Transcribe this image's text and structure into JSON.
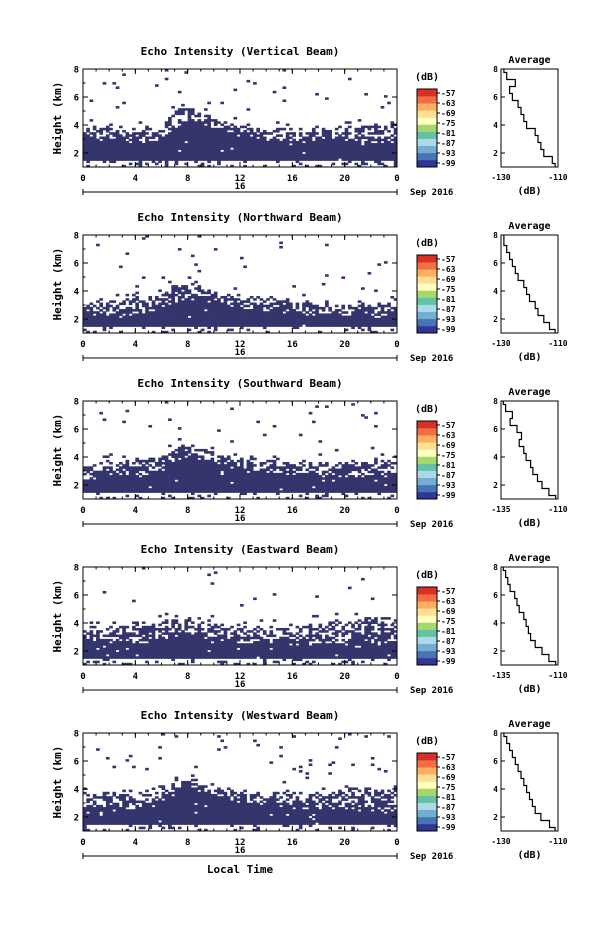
{
  "chart_data": [
    {
      "type": "heatmap",
      "title": "Echo Intensity (Vertical Beam)",
      "ylabel": "Height (km)",
      "xlim": [
        0,
        24
      ],
      "ylim": [
        1,
        8
      ],
      "xticks": [
        "0",
        "4",
        "8",
        "12",
        "16",
        "20",
        "0"
      ],
      "yticks": [
        "2",
        "4",
        "6",
        "8"
      ],
      "date_label": "16",
      "month_label": "Sep 2016",
      "colorbar": {
        "unit": "(dB)",
        "ticks": [
          "-57",
          "-63",
          "-69",
          "-75",
          "-81",
          "-87",
          "-93",
          "-99"
        ]
      },
      "cloud": {
        "base": [
          3.7,
          3.8,
          3.9,
          3.6,
          3.7,
          3.8,
          4.0,
          5.2,
          5.4,
          5.0,
          4.5,
          4.3,
          4.1,
          3.9,
          3.8,
          3.9,
          3.8,
          3.7,
          3.6,
          3.6,
          3.8,
          4.0,
          4.0,
          3.9,
          4.1
        ],
        "dense": [
          2.9,
          2.8,
          3.0,
          2.9,
          2.7,
          2.8,
          3.0,
          3.6,
          4.5,
          4.0,
          3.8,
          3.4,
          3.2,
          3.0,
          2.9,
          2.8,
          2.7,
          2.8,
          3.0,
          2.9,
          2.8,
          2.6,
          2.5,
          2.5,
          2.6
        ]
      },
      "profile": {
        "title": "Average",
        "xlabel": "(dB)",
        "xlim": [
          -130,
          -110
        ],
        "xticks": [
          "-130",
          "-110"
        ],
        "yticks": [
          "2",
          "4",
          "6",
          "8"
        ],
        "h": [
          1,
          1.5,
          2,
          2.5,
          3,
          3.5,
          4,
          4.5,
          5,
          5.5,
          6,
          6.5,
          7,
          7.5,
          8
        ],
        "v": [
          -111,
          -112,
          -115,
          -116,
          -117,
          -118,
          -121,
          -122,
          -123,
          -124,
          -126,
          -127,
          -125,
          -128,
          -129
        ]
      }
    },
    {
      "type": "heatmap",
      "title": "Echo Intensity (Northward Beam)",
      "ylabel": "Height (km)",
      "xlim": [
        0,
        24
      ],
      "ylim": [
        1,
        8
      ],
      "xticks": [
        "0",
        "4",
        "8",
        "12",
        "16",
        "20",
        "0"
      ],
      "yticks": [
        "2",
        "4",
        "6",
        "8"
      ],
      "date_label": "16",
      "month_label": "Sep 2016",
      "colorbar": {
        "unit": "(dB)",
        "ticks": [
          "-57",
          "-63",
          "-69",
          "-75",
          "-81",
          "-87",
          "-93",
          "-99"
        ]
      },
      "cloud": {
        "base": [
          3.1,
          3.2,
          3.3,
          3.2,
          3.5,
          3.6,
          3.8,
          4.4,
          4.5,
          4.2,
          4.0,
          3.8,
          3.7,
          3.6,
          3.5,
          3.4,
          3.4,
          3.3,
          3.2,
          3.1,
          3.2,
          3.3,
          3.2,
          3.1,
          3.2
        ],
        "dense": [
          2.4,
          2.3,
          2.2,
          2.1,
          2.0,
          2.4,
          2.8,
          3.2,
          3.4,
          3.3,
          3.2,
          2.9,
          2.8,
          2.6,
          2.5,
          2.5,
          2.4,
          2.4,
          2.3,
          2.3,
          2.2,
          2.1,
          2.0,
          2.2,
          2.4
        ]
      },
      "profile": {
        "title": "Average",
        "xlabel": "(dB)",
        "xlim": [
          -130,
          -110
        ],
        "xticks": [
          "-130",
          "-110"
        ],
        "yticks": [
          "2",
          "4",
          "6",
          "8"
        ],
        "h": [
          1,
          1.5,
          2,
          2.5,
          3,
          3.5,
          4,
          4.5,
          5,
          5.5,
          6,
          6.5,
          7,
          7.5,
          8
        ],
        "v": [
          -111,
          -113,
          -115,
          -117,
          -118,
          -120,
          -121,
          -122,
          -124,
          -125,
          -126,
          -127,
          -128,
          -129,
          -129
        ]
      }
    },
    {
      "type": "heatmap",
      "title": "Echo Intensity (Southward Beam)",
      "ylabel": "Height (km)",
      "xlim": [
        0,
        24
      ],
      "ylim": [
        1,
        8
      ],
      "xticks": [
        "0",
        "4",
        "8",
        "12",
        "16",
        "20",
        "0"
      ],
      "yticks": [
        "2",
        "4",
        "6",
        "8"
      ],
      "date_label": "16",
      "month_label": "Sep 2016",
      "colorbar": {
        "unit": "(dB)",
        "ticks": [
          "-57",
          "-63",
          "-69",
          "-75",
          "-81",
          "-87",
          "-93",
          "-99"
        ]
      },
      "cloud": {
        "base": [
          3.6,
          3.6,
          3.7,
          3.7,
          3.8,
          3.9,
          4.1,
          4.7,
          5.0,
          4.6,
          4.3,
          4.1,
          4.0,
          3.9,
          3.8,
          3.8,
          3.7,
          3.6,
          3.6,
          3.5,
          3.6,
          3.8,
          3.9,
          3.9,
          4.0
        ],
        "dense": [
          2.4,
          2.6,
          2.8,
          2.6,
          2.5,
          2.8,
          3.0,
          3.5,
          4.0,
          3.8,
          3.5,
          3.2,
          3.0,
          2.9,
          2.8,
          2.7,
          2.7,
          2.6,
          2.6,
          2.5,
          2.5,
          2.6,
          2.6,
          2.5,
          2.6
        ]
      },
      "profile": {
        "title": "Average",
        "xlabel": "(dB)",
        "xlim": [
          -135,
          -110
        ],
        "xticks": [
          "-135",
          "-110"
        ],
        "yticks": [
          "2",
          "4",
          "6",
          "8"
        ],
        "h": [
          1,
          1.5,
          2,
          2.5,
          3,
          3.5,
          4,
          4.5,
          5,
          5.5,
          6,
          6.5,
          7,
          7.5,
          8
        ],
        "v": [
          -111,
          -114,
          -117,
          -119,
          -121,
          -122,
          -124,
          -125,
          -127,
          -126,
          -128,
          -131,
          -130,
          -133,
          -134
        ]
      }
    },
    {
      "type": "heatmap",
      "title": "Echo Intensity (Eastward Beam)",
      "ylabel": "Height (km)",
      "xlim": [
        0,
        24
      ],
      "ylim": [
        1,
        8
      ],
      "xticks": [
        "0",
        "4",
        "8",
        "12",
        "16",
        "20",
        "0"
      ],
      "yticks": [
        "2",
        "4",
        "6",
        "8"
      ],
      "date_label": "16",
      "month_label": "Sep 2016",
      "colorbar": {
        "unit": "(dB)",
        "ticks": [
          "-57",
          "-63",
          "-69",
          "-75",
          "-81",
          "-87",
          "-93",
          "-99"
        ]
      },
      "cloud": {
        "base": [
          3.8,
          3.7,
          3.6,
          3.8,
          4.0,
          4.1,
          4.3,
          4.4,
          4.3,
          4.1,
          4.0,
          3.9,
          3.8,
          3.8,
          3.7,
          3.7,
          3.8,
          3.9,
          4.0,
          4.1,
          4.2,
          4.3,
          4.4,
          4.3,
          4.2
        ],
        "dense": [
          2.8,
          2.7,
          2.6,
          2.5,
          2.5,
          2.6,
          2.8,
          3.0,
          3.1,
          3.0,
          2.8,
          2.7,
          2.6,
          2.6,
          2.5,
          2.5,
          2.4,
          2.4,
          2.5,
          2.4,
          2.4,
          2.3,
          2.4,
          2.5,
          2.6
        ]
      },
      "profile": {
        "title": "Average",
        "xlabel": "(dB)",
        "xlim": [
          -135,
          -110
        ],
        "xticks": [
          "-135",
          "-110"
        ],
        "yticks": [
          "2",
          "4",
          "6",
          "8"
        ],
        "h": [
          1,
          1.5,
          2,
          2.5,
          3,
          3.5,
          4,
          4.5,
          5,
          5.5,
          6,
          6.5,
          7,
          7.5,
          8
        ],
        "v": [
          -111,
          -114,
          -117,
          -120,
          -122,
          -123,
          -124,
          -125,
          -127,
          -128,
          -129,
          -131,
          -132,
          -133,
          -134
        ]
      }
    },
    {
      "type": "heatmap",
      "title": "Echo Intensity (Westward Beam)",
      "ylabel": "Height (km)",
      "xlim": [
        0,
        24
      ],
      "ylim": [
        1,
        8
      ],
      "xticks": [
        "0",
        "4",
        "8",
        "12",
        "16",
        "20",
        "0"
      ],
      "yticks": [
        "2",
        "4",
        "6",
        "8"
      ],
      "date_label": "16",
      "month_label": "Sep 2016",
      "xlabel": "Local Time",
      "colorbar": {
        "unit": "(dB)",
        "ticks": [
          "-57",
          "-63",
          "-69",
          "-75",
          "-81",
          "-87",
          "-93",
          "-99"
        ]
      },
      "cloud": {
        "base": [
          3.5,
          3.6,
          3.7,
          3.5,
          3.7,
          3.9,
          4.1,
          4.6,
          4.8,
          4.4,
          4.1,
          3.9,
          3.8,
          3.8,
          3.7,
          3.8,
          3.8,
          3.7,
          3.6,
          3.7,
          3.9,
          4.0,
          4.1,
          4.0,
          4.1
        ],
        "dense": [
          2.6,
          2.7,
          2.8,
          2.6,
          2.5,
          2.7,
          3.0,
          3.6,
          4.2,
          3.8,
          3.5,
          3.2,
          3.0,
          2.9,
          2.8,
          2.7,
          2.6,
          2.6,
          2.5,
          2.5,
          2.5,
          2.4,
          2.4,
          2.3,
          2.4
        ]
      },
      "profile": {
        "title": "Average",
        "xlabel": "(dB)",
        "xlim": [
          -130,
          -110
        ],
        "xticks": [
          "-130",
          "-110"
        ],
        "yticks": [
          "2",
          "4",
          "6",
          "8"
        ],
        "h": [
          1,
          1.5,
          2,
          2.5,
          3,
          3.5,
          4,
          4.5,
          5,
          5.5,
          6,
          6.5,
          7,
          7.5,
          8
        ],
        "v": [
          -111,
          -113,
          -116,
          -118,
          -119,
          -120,
          -121,
          -122,
          -123,
          -124,
          -125,
          -126,
          -127,
          -128,
          -129
        ]
      }
    }
  ],
  "colors": {
    "dense": "#35356d",
    "colorbar": [
      "#313695",
      "#4575b4",
      "#74add1",
      "#abd9e9",
      "#66c2a5",
      "#a6d96a",
      "#ffffbf",
      "#fee090",
      "#fdae61",
      "#f46d43",
      "#d73027"
    ]
  }
}
